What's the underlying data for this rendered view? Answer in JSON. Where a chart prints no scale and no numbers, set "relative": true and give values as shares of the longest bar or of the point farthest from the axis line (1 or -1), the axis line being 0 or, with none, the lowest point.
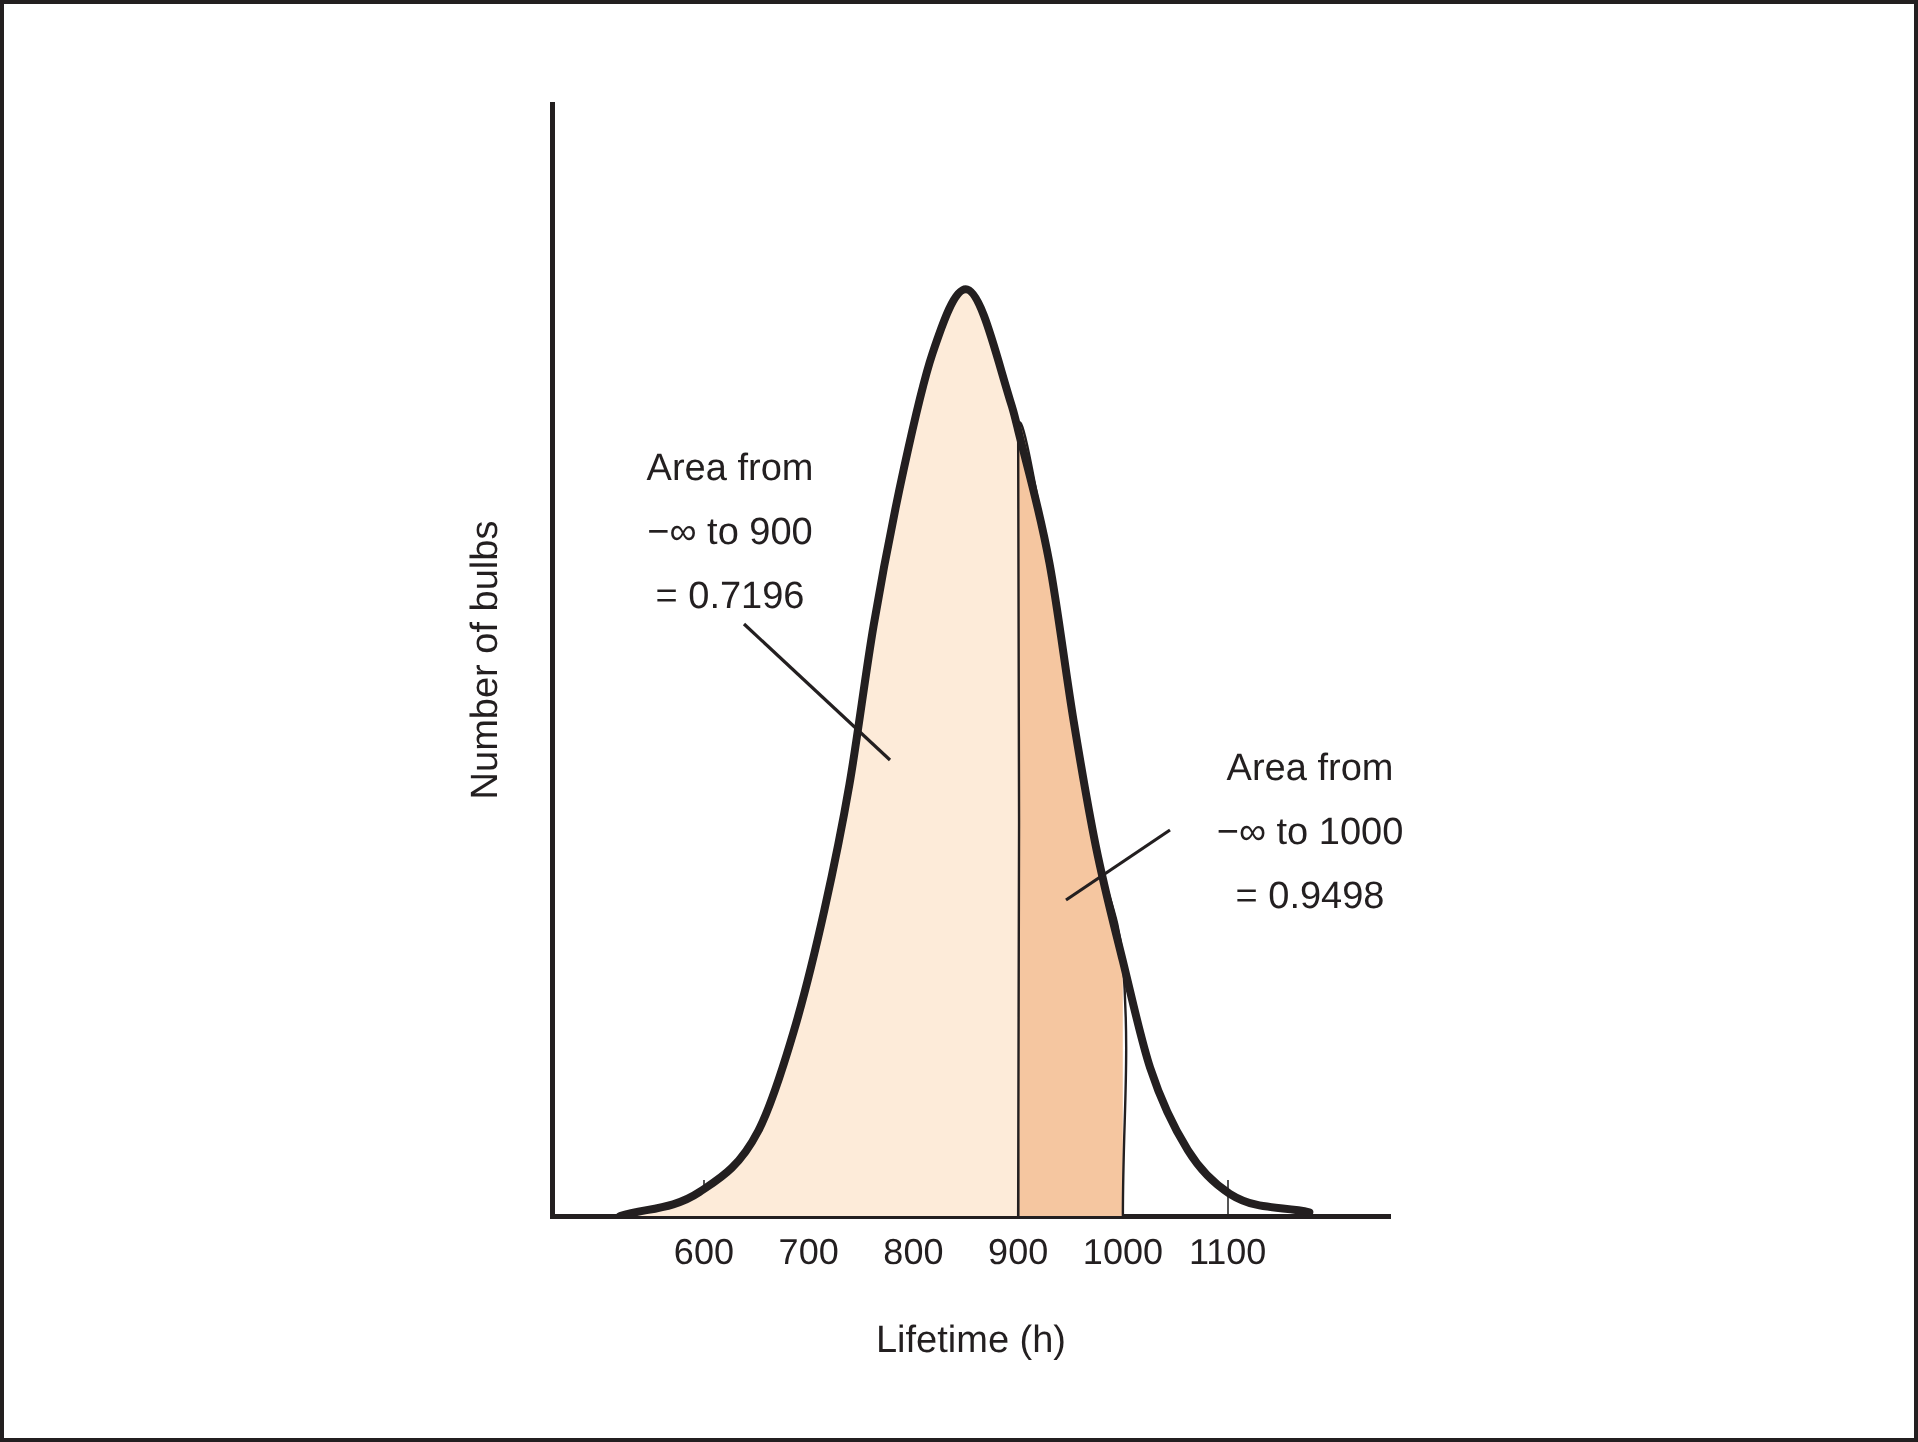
{
  "chart_data": {
    "type": "line",
    "relative": true,
    "xlabel": "Lifetime (h)",
    "ylabel": "Number of bulbs",
    "xlim": [
      455,
      1255
    ],
    "xticks": [
      600,
      700,
      800,
      900,
      1000,
      1100
    ],
    "series": [
      {
        "type": "area",
        "color": "#fdebd9",
        "x": [
          520,
          596,
          652,
          686,
          715,
          739,
          762,
          791,
          818,
          850,
          894,
          900,
          900
        ],
        "values": [
          0,
          0.026,
          0.092,
          0.2,
          0.33,
          0.466,
          0.637,
          0.807,
          0.93,
          1,
          0.874,
          0.848,
          0
        ]
      },
      {
        "type": "area",
        "color": "#f5c6a0",
        "x": [
          900,
          900,
          930,
          953,
          974,
          1000,
          1000
        ],
        "values": [
          0,
          0.848,
          0.704,
          0.534,
          0.4,
          0.275,
          0
        ]
      },
      {
        "color": "#231f20",
        "x": [
          520,
          596,
          652,
          686,
          715,
          739,
          762,
          791,
          818,
          850,
          894,
          900,
          930,
          953,
          974,
          1000,
          1026,
          1062,
          1102,
          1178
        ],
        "values": [
          0,
          0.026,
          0.092,
          0.2,
          0.33,
          0.466,
          0.637,
          0.807,
          0.93,
          1,
          0.874,
          0.848,
          0.704,
          0.534,
          0.4,
          0.275,
          0.16,
          0.071,
          0.024,
          0.004
        ]
      }
    ],
    "annotations": [
      "Area from\n−∞ to 900\n= 0.7196",
      "Area from\n−∞ to 1000\n= 0.9498"
    ],
    "grid": false,
    "legend": false,
    "marker": "none",
    "line_style": "solid"
  }
}
